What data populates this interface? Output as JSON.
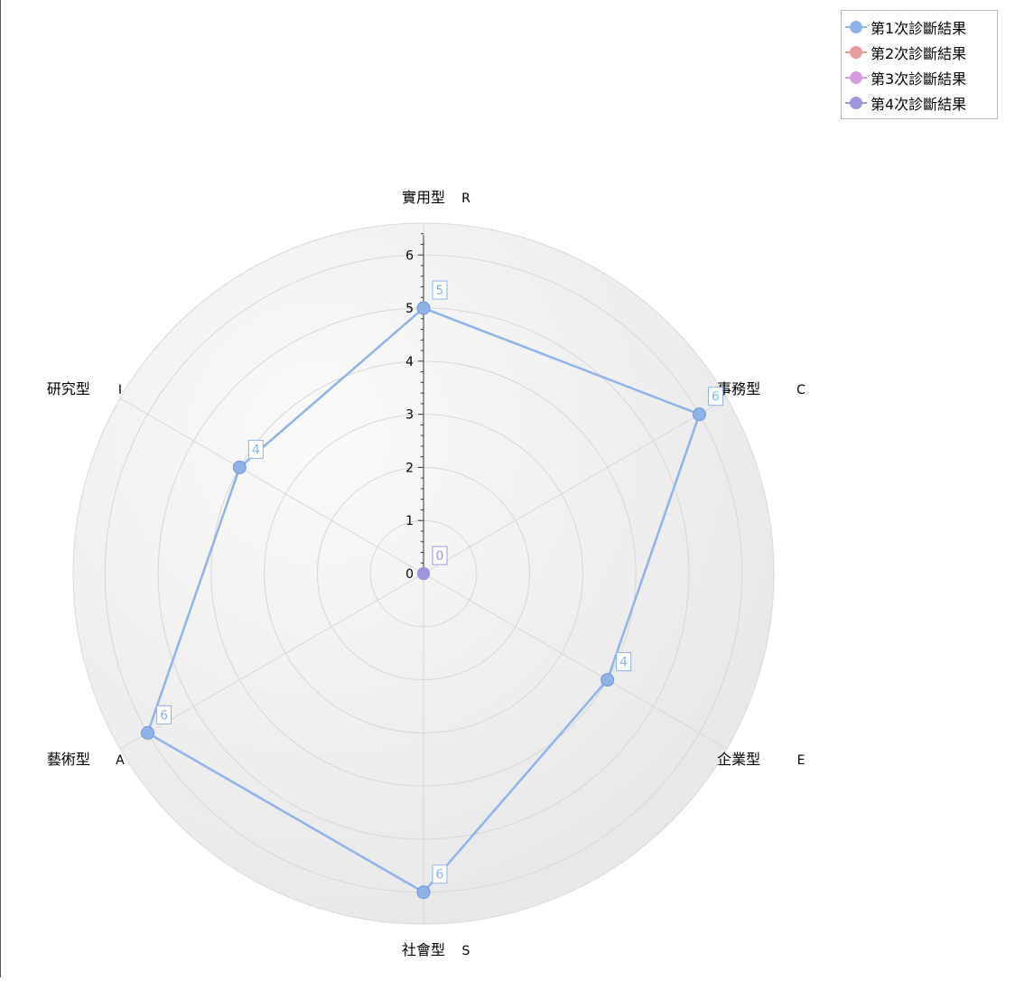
{
  "chart_data": {
    "type": "radar",
    "axes": [
      {
        "label": "實用型",
        "code": "R"
      },
      {
        "label": "事務型",
        "code": "C"
      },
      {
        "label": "企業型",
        "code": "E"
      },
      {
        "label": "社會型",
        "code": "S"
      },
      {
        "label": "藝術型",
        "code": "A"
      },
      {
        "label": "研究型",
        "code": "I"
      }
    ],
    "radial_ticks": [
      "0",
      "1",
      "2",
      "3",
      "4",
      "5",
      "6"
    ],
    "rmax": 6.6,
    "series": [
      {
        "name": "第1次診斷結果",
        "values": [
          5,
          6,
          4,
          6,
          6,
          4
        ],
        "color": "#8db3ea"
      },
      {
        "name": "第2次診斷結果",
        "values": [
          0,
          0,
          0,
          0,
          0,
          0
        ],
        "color": "#eb9b9b"
      },
      {
        "name": "第3次診斷結果",
        "values": [
          0,
          0,
          0,
          0,
          0,
          0
        ],
        "color": "#d79be0"
      },
      {
        "name": "第4次診斷結果",
        "values": [
          0,
          0,
          0,
          0,
          0,
          0
        ],
        "color": "#9d95df"
      }
    ],
    "data_labels": [
      {
        "series": 0,
        "text": "5"
      },
      {
        "series": 0,
        "text": "6"
      },
      {
        "series": 0,
        "text": "4"
      },
      {
        "series": 0,
        "text": "6"
      },
      {
        "series": 0,
        "text": "6"
      },
      {
        "series": 0,
        "text": "4"
      },
      {
        "series": 3,
        "text": "0"
      }
    ],
    "legend_position": "top-right",
    "grid": true
  }
}
